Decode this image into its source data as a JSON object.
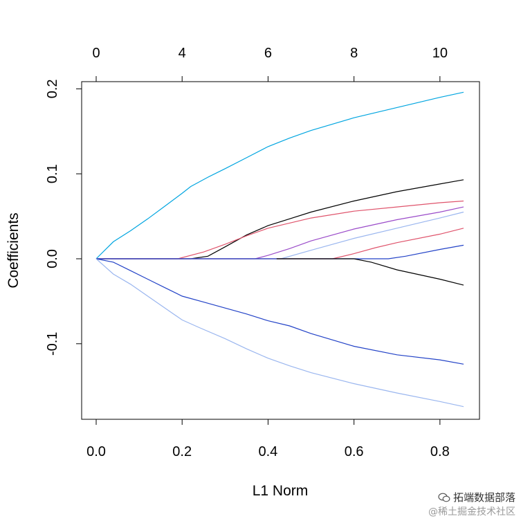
{
  "chart_data": {
    "type": "line",
    "title": "",
    "xlabel": "L1 Norm",
    "ylabel": "Coefficients",
    "xlim": [
      0.0,
      0.86
    ],
    "ylim": [
      -0.19,
      0.21
    ],
    "x_ticks": [
      "0.0",
      "0.2",
      "0.4",
      "0.6",
      "0.8"
    ],
    "x_tick_values": [
      0.0,
      0.2,
      0.4,
      0.6,
      0.8
    ],
    "y_ticks": [
      "-0.1",
      "0.0",
      "0.1",
      "0.2"
    ],
    "y_tick_values": [
      -0.1,
      0.0,
      0.1,
      0.2
    ],
    "top_axis": {
      "labels": [
        "0",
        "4",
        "6",
        "8",
        "10"
      ],
      "positions": [
        0.0,
        0.2,
        0.4,
        0.6,
        0.8
      ]
    },
    "grid": false,
    "legend": "none",
    "series": [
      {
        "color": "#00a5e0",
        "points": [
          [
            0,
            0
          ],
          [
            0.02,
            0.01
          ],
          [
            0.04,
            0.02
          ],
          [
            0.08,
            0.033
          ],
          [
            0.12,
            0.047
          ],
          [
            0.16,
            0.062
          ],
          [
            0.2,
            0.077
          ],
          [
            0.22,
            0.085
          ],
          [
            0.26,
            0.096
          ],
          [
            0.3,
            0.106
          ],
          [
            0.35,
            0.119
          ],
          [
            0.4,
            0.132
          ],
          [
            0.45,
            0.142
          ],
          [
            0.5,
            0.151
          ],
          [
            0.6,
            0.166
          ],
          [
            0.7,
            0.178
          ],
          [
            0.8,
            0.19
          ],
          [
            0.855,
            0.196
          ]
        ]
      },
      {
        "color": "#000000",
        "points": [
          [
            0,
            0
          ],
          [
            0.22,
            0
          ],
          [
            0.26,
            0.003
          ],
          [
            0.3,
            0.014
          ],
          [
            0.35,
            0.028
          ],
          [
            0.4,
            0.039
          ],
          [
            0.45,
            0.047
          ],
          [
            0.5,
            0.055
          ],
          [
            0.6,
            0.068
          ],
          [
            0.7,
            0.079
          ],
          [
            0.8,
            0.088
          ],
          [
            0.855,
            0.093
          ]
        ]
      },
      {
        "color": "#df536b",
        "points": [
          [
            0,
            0
          ],
          [
            0.19,
            0
          ],
          [
            0.25,
            0.008
          ],
          [
            0.3,
            0.017
          ],
          [
            0.35,
            0.027
          ],
          [
            0.4,
            0.036
          ],
          [
            0.45,
            0.042
          ],
          [
            0.5,
            0.048
          ],
          [
            0.6,
            0.056
          ],
          [
            0.7,
            0.061
          ],
          [
            0.8,
            0.066
          ],
          [
            0.855,
            0.068
          ]
        ]
      },
      {
        "color": "#9a4bc9",
        "points": [
          [
            0,
            0
          ],
          [
            0.37,
            0
          ],
          [
            0.4,
            0.004
          ],
          [
            0.45,
            0.012
          ],
          [
            0.5,
            0.021
          ],
          [
            0.6,
            0.035
          ],
          [
            0.7,
            0.046
          ],
          [
            0.8,
            0.055
          ],
          [
            0.855,
            0.061
          ]
        ]
      },
      {
        "color": "#9ab6ef",
        "points": [
          [
            0,
            0
          ],
          [
            0.43,
            0
          ],
          [
            0.5,
            0.01
          ],
          [
            0.6,
            0.024
          ],
          [
            0.7,
            0.036
          ],
          [
            0.8,
            0.048
          ],
          [
            0.855,
            0.055
          ]
        ]
      },
      {
        "color": "#df536b",
        "points": [
          [
            0,
            0
          ],
          [
            0.55,
            0
          ],
          [
            0.6,
            0.006
          ],
          [
            0.65,
            0.013
          ],
          [
            0.7,
            0.019
          ],
          [
            0.8,
            0.029
          ],
          [
            0.855,
            0.036
          ]
        ]
      },
      {
        "color": "#2242c7",
        "points": [
          [
            0,
            0
          ],
          [
            0.68,
            0
          ],
          [
            0.72,
            0.003
          ],
          [
            0.8,
            0.011
          ],
          [
            0.855,
            0.016
          ]
        ]
      },
      {
        "color": "#000000",
        "points": [
          [
            0.42,
            0
          ],
          [
            0.6,
            0
          ],
          [
            0.64,
            -0.004
          ],
          [
            0.7,
            -0.013
          ],
          [
            0.8,
            -0.024
          ],
          [
            0.855,
            -0.031
          ]
        ]
      },
      {
        "color": "#2242c7",
        "points": [
          [
            0,
            0
          ],
          [
            0.04,
            -0.004
          ],
          [
            0.08,
            -0.014
          ],
          [
            0.12,
            -0.024
          ],
          [
            0.16,
            -0.034
          ],
          [
            0.2,
            -0.044
          ],
          [
            0.25,
            -0.051
          ],
          [
            0.3,
            -0.058
          ],
          [
            0.35,
            -0.065
          ],
          [
            0.4,
            -0.073
          ],
          [
            0.45,
            -0.079
          ],
          [
            0.5,
            -0.088
          ],
          [
            0.6,
            -0.103
          ],
          [
            0.7,
            -0.113
          ],
          [
            0.8,
            -0.119
          ],
          [
            0.855,
            -0.124
          ]
        ]
      },
      {
        "color": "#9ab6ef",
        "points": [
          [
            0,
            0
          ],
          [
            0.04,
            -0.018
          ],
          [
            0.08,
            -0.03
          ],
          [
            0.12,
            -0.044
          ],
          [
            0.16,
            -0.058
          ],
          [
            0.2,
            -0.072
          ],
          [
            0.24,
            -0.081
          ],
          [
            0.3,
            -0.094
          ],
          [
            0.35,
            -0.106
          ],
          [
            0.4,
            -0.117
          ],
          [
            0.45,
            -0.126
          ],
          [
            0.5,
            -0.134
          ],
          [
            0.6,
            -0.147
          ],
          [
            0.7,
            -0.158
          ],
          [
            0.8,
            -0.168
          ],
          [
            0.855,
            -0.174
          ]
        ]
      }
    ]
  },
  "watermark": {
    "line1": "拓端数据部落",
    "line2": "@稀土掘金技术社区"
  }
}
